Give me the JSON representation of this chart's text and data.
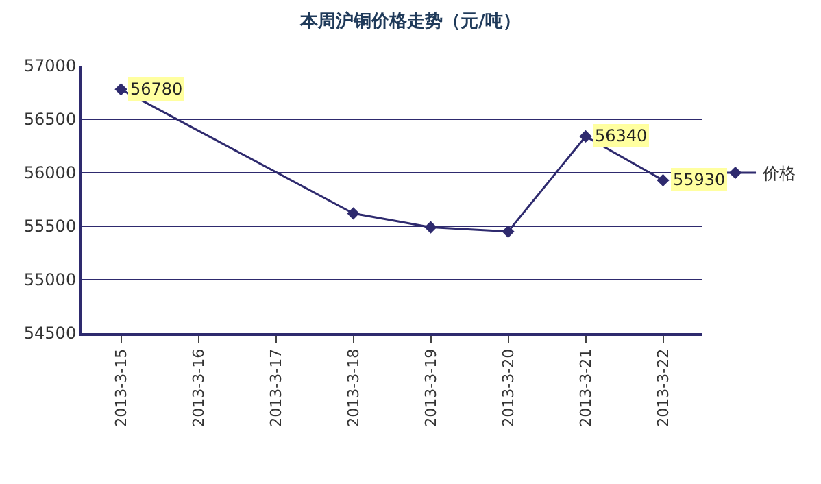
{
  "chart_data": {
    "type": "line",
    "title": "本周沪铜价格走势（元/吨）",
    "categories": [
      "2013-3-15",
      "2013-3-16",
      "2013-3-17",
      "2013-3-18",
      "2013-3-19",
      "2013-3-20",
      "2013-3-21",
      "2013-3-22"
    ],
    "series": [
      {
        "name": "价格",
        "color": "#2e2a6e",
        "values": [
          56780,
          null,
          null,
          55620,
          55490,
          55450,
          56340,
          55930
        ],
        "value_labels": [
          "56780",
          null,
          null,
          null,
          null,
          null,
          "56340",
          "55930"
        ]
      }
    ],
    "ylim": [
      54500,
      57000
    ],
    "yticks": [
      54500,
      55000,
      55500,
      56000,
      56500,
      57000
    ],
    "grid": "y",
    "legend": "right",
    "marker": "diamond",
    "line_style": "solid"
  }
}
